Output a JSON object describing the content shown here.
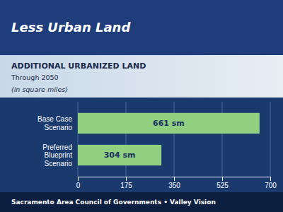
{
  "chart_data": {
    "type": "bar",
    "orientation": "horizontal",
    "title": "Less Urban Land",
    "subtitle": [
      "ADDITIONAL URBANIZED LAND",
      "Through 2050",
      "(in square miles)"
    ],
    "annotations": [
      "Sacramento Area Council of Governments  •  Valley Vision"
    ],
    "categories": [
      "Base Case\nScenario",
      "Preferred\nBlueprint\nScenario"
    ],
    "values": [
      661,
      304
    ],
    "value_labels": [
      "661 sm",
      "304 sm"
    ],
    "data_labels": true,
    "color": "#90d080",
    "xlim": [
      0,
      700
    ],
    "xticks": [
      0,
      175,
      350,
      525,
      700
    ],
    "grid": true
  }
}
